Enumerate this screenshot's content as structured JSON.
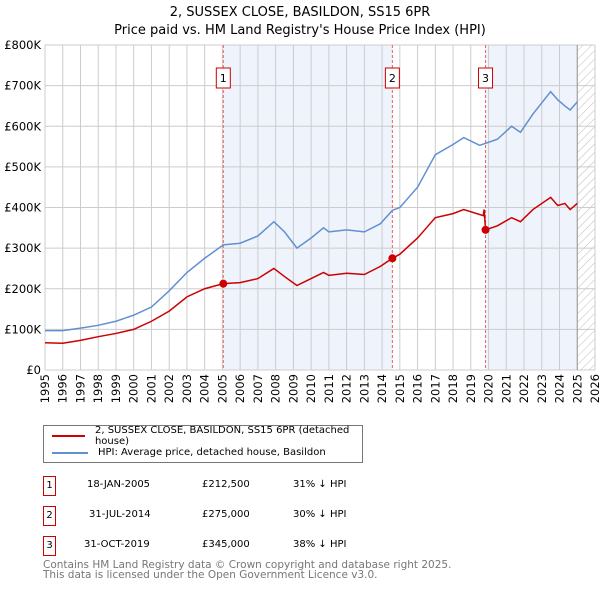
{
  "title_line1": "2, SUSSEX CLOSE, BASILDON, SS15 6PR",
  "title_line2": "Price paid vs. HM Land Registry's House Price Index (HPI)",
  "legend": [
    {
      "label": "2, SUSSEX CLOSE, BASILDON, SS15 6PR (detached house)",
      "color": "#cc0000"
    },
    {
      "label": "HPI: Average price, detached house, Basildon",
      "color": "#6090d0"
    }
  ],
  "transactions": [
    {
      "n": "1",
      "date": "18-JAN-2005",
      "price": "£212,500",
      "hpi": "31% ↓ HPI"
    },
    {
      "n": "2",
      "date": "31-JUL-2014",
      "price": "£275,000",
      "hpi": "30% ↓ HPI"
    },
    {
      "n": "3",
      "date": "31-OCT-2019",
      "price": "£345,000",
      "hpi": "38% ↓ HPI"
    }
  ],
  "footer_line1": "Contains HM Land Registry data © Crown copyright and database right 2025.",
  "footer_line2": "This data is licensed under the Open Government Licence v3.0.",
  "chart_data": {
    "type": "line",
    "xlim": [
      1995,
      2026
    ],
    "ylim": [
      0,
      800000
    ],
    "yticks": [
      {
        "v": 0,
        "l": "£0"
      },
      {
        "v": 100000,
        "l": "£100K"
      },
      {
        "v": 200000,
        "l": "£200K"
      },
      {
        "v": 300000,
        "l": "£300K"
      },
      {
        "v": 400000,
        "l": "£400K"
      },
      {
        "v": 500000,
        "l": "£500K"
      },
      {
        "v": 600000,
        "l": "£600K"
      },
      {
        "v": 700000,
        "l": "£700K"
      },
      {
        "v": 800000,
        "l": "£800K"
      }
    ],
    "xticks": [
      1995,
      1996,
      1997,
      1998,
      1999,
      2000,
      2001,
      2002,
      2003,
      2004,
      2005,
      2006,
      2007,
      2008,
      2009,
      2010,
      2011,
      2012,
      2013,
      2014,
      2015,
      2016,
      2017,
      2018,
      2019,
      2020,
      2021,
      2022,
      2023,
      2024,
      2025,
      2026
    ],
    "shaded": [
      [
        2005.05,
        2014.58
      ],
      [
        2019.83,
        2025.0
      ]
    ],
    "hatch_from": 2025.0,
    "markers": [
      {
        "label": "1",
        "x": 2005.05,
        "y": 212500
      },
      {
        "label": "2",
        "x": 2014.58,
        "y": 275000
      },
      {
        "label": "3",
        "x": 2019.83,
        "y": 345000
      }
    ],
    "series": [
      {
        "name": "HPI: Average price, detached house, Basildon",
        "color": "#6090d0",
        "points": [
          [
            1995,
            97000
          ],
          [
            1996,
            97000
          ],
          [
            1997,
            103000
          ],
          [
            1998,
            110000
          ],
          [
            1999,
            120000
          ],
          [
            2000,
            135000
          ],
          [
            2001,
            155000
          ],
          [
            2002,
            195000
          ],
          [
            2003,
            240000
          ],
          [
            2004,
            275000
          ],
          [
            2005.05,
            308000
          ],
          [
            2006,
            312000
          ],
          [
            2007,
            330000
          ],
          [
            2007.9,
            365000
          ],
          [
            2008.5,
            340000
          ],
          [
            2009.2,
            300000
          ],
          [
            2010,
            325000
          ],
          [
            2010.7,
            350000
          ],
          [
            2011,
            340000
          ],
          [
            2012,
            345000
          ],
          [
            2013,
            340000
          ],
          [
            2013.9,
            360000
          ],
          [
            2014.58,
            393000
          ],
          [
            2015,
            400000
          ],
          [
            2016,
            450000
          ],
          [
            2016.5,
            490000
          ],
          [
            2017,
            530000
          ],
          [
            2018,
            555000
          ],
          [
            2018.6,
            572000
          ],
          [
            2019.5,
            553000
          ],
          [
            2019.83,
            558000
          ],
          [
            2020.5,
            568000
          ],
          [
            2021.3,
            600000
          ],
          [
            2021.8,
            585000
          ],
          [
            2022.5,
            630000
          ],
          [
            2023.5,
            685000
          ],
          [
            2023.9,
            665000
          ],
          [
            2024.3,
            650000
          ],
          [
            2024.6,
            640000
          ],
          [
            2025,
            660000
          ]
        ]
      },
      {
        "name": "2, SUSSEX CLOSE, BASILDON, SS15 6PR (detached house)",
        "color": "#cc0000",
        "points": [
          [
            1995,
            67000
          ],
          [
            1996,
            66000
          ],
          [
            1997,
            73000
          ],
          [
            1998,
            82000
          ],
          [
            1999,
            90000
          ],
          [
            2000,
            100000
          ],
          [
            2001,
            120000
          ],
          [
            2002,
            145000
          ],
          [
            2003,
            180000
          ],
          [
            2004,
            200000
          ],
          [
            2005.05,
            212500
          ],
          [
            2006,
            215000
          ],
          [
            2007,
            225000
          ],
          [
            2007.9,
            250000
          ],
          [
            2008.5,
            230000
          ],
          [
            2009.2,
            208000
          ],
          [
            2010,
            225000
          ],
          [
            2010.7,
            240000
          ],
          [
            2011,
            233000
          ],
          [
            2012,
            238000
          ],
          [
            2013,
            235000
          ],
          [
            2013.9,
            255000
          ],
          [
            2014.58,
            275000
          ],
          [
            2015,
            285000
          ],
          [
            2016,
            325000
          ],
          [
            2016.5,
            350000
          ],
          [
            2017,
            375000
          ],
          [
            2018,
            385000
          ],
          [
            2018.6,
            395000
          ],
          [
            2019.7,
            380000
          ],
          [
            2019.75,
            395000
          ],
          [
            2019.83,
            345000
          ],
          [
            2020.5,
            355000
          ],
          [
            2021.3,
            375000
          ],
          [
            2021.8,
            365000
          ],
          [
            2022.5,
            395000
          ],
          [
            2023.5,
            425000
          ],
          [
            2023.9,
            405000
          ],
          [
            2024.3,
            410000
          ],
          [
            2024.6,
            395000
          ],
          [
            2025,
            410000
          ]
        ]
      }
    ]
  }
}
